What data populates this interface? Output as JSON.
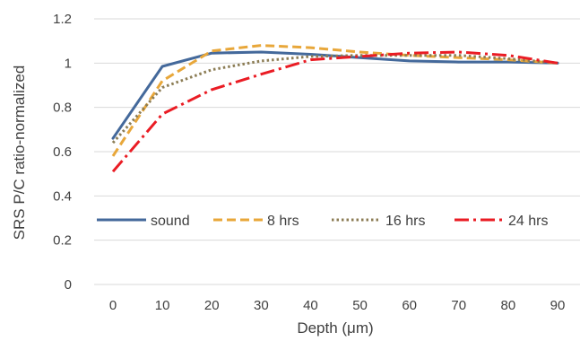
{
  "chart_data": {
    "type": "line",
    "xlabel": "Depth (μm)",
    "ylabel": "SRS P/C ratio-normalized",
    "x": [
      0,
      10,
      20,
      30,
      40,
      50,
      60,
      70,
      80,
      90
    ],
    "xlim": [
      0,
      90
    ],
    "ylim": [
      0,
      1.2
    ],
    "yticks": [
      "0",
      "0.2",
      "0.4",
      "0.6",
      "0.8",
      "1",
      "1.2"
    ],
    "xticks": [
      "0",
      "10",
      "20",
      "30",
      "40",
      "50",
      "60",
      "70",
      "80",
      "90"
    ],
    "grid": "horizontal",
    "legend_position": "inside-lower-left",
    "series": [
      {
        "name": "sound",
        "color": "#44699b",
        "dash": "solid",
        "values": [
          0.66,
          0.985,
          1.045,
          1.05,
          1.04,
          1.025,
          1.01,
          1.005,
          1.005,
          1.0
        ]
      },
      {
        "name": "8 hrs",
        "color": "#e8a73a",
        "dash": "dashed",
        "values": [
          0.58,
          0.92,
          1.055,
          1.08,
          1.07,
          1.05,
          1.035,
          1.025,
          1.015,
          1.0
        ]
      },
      {
        "name": "16 hrs",
        "color": "#8c7d55",
        "dash": "dotted",
        "values": [
          0.64,
          0.89,
          0.97,
          1.01,
          1.03,
          1.035,
          1.035,
          1.035,
          1.02,
          1.0
        ]
      },
      {
        "name": "24 hrs",
        "color": "#ea1c24",
        "dash": "dashdot",
        "values": [
          0.51,
          0.77,
          0.88,
          0.95,
          1.015,
          1.03,
          1.045,
          1.05,
          1.035,
          1.0
        ]
      }
    ]
  }
}
